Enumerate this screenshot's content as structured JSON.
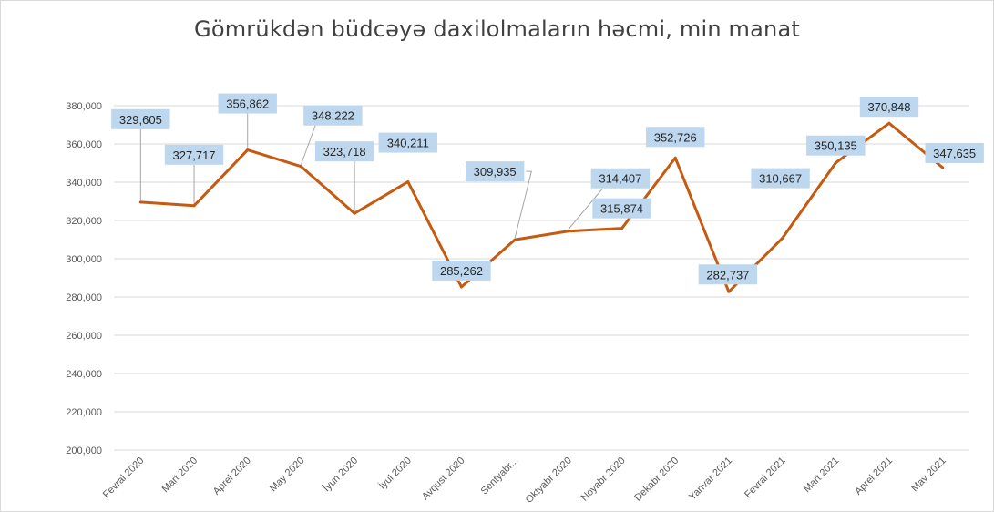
{
  "chart_data": {
    "type": "line",
    "title": "Gömrükdən büdcəyə daxilolmaların həcmi, min manat",
    "categories": [
      "Fevral 2020",
      "Mart 2020",
      "Aprel 2020",
      "May 2020",
      "İyun 2020",
      "İyul 2020",
      "Avqust 2020",
      "Sentyabr...",
      "Oktyabr 2020",
      "Noyabr 2020",
      "Dekabr 2020",
      "Yanvar 2021",
      "Fevral 2021",
      "Mart 2021",
      "Aprel 2021",
      "May 2021"
    ],
    "series": [
      {
        "values": [
          329605,
          327717,
          356862,
          348222,
          323718,
          340211,
          285262,
          309935,
          314407,
          315874,
          352726,
          282737,
          310667,
          350135,
          370848,
          347635
        ],
        "labels": [
          "329,605",
          "327,717",
          "356,862",
          "348,222",
          "323,718",
          "340,211",
          "285,262",
          "309,935",
          "314,407",
          "315,874",
          "352,726",
          "282,737",
          "310,667",
          "350,135",
          "370,848",
          "347,635"
        ],
        "color": "#c55a11"
      }
    ],
    "ylim": [
      200000,
      380000
    ],
    "yticks": [
      "200,000",
      "220,000",
      "240,000",
      "260,000",
      "280,000",
      "300,000",
      "320,000",
      "340,000",
      "360,000",
      "380,000"
    ],
    "grid": true,
    "colors": {
      "gridline": "#d9d9d9",
      "label_fill": "#bdd7ee",
      "leader": "#a6a6a6"
    }
  }
}
